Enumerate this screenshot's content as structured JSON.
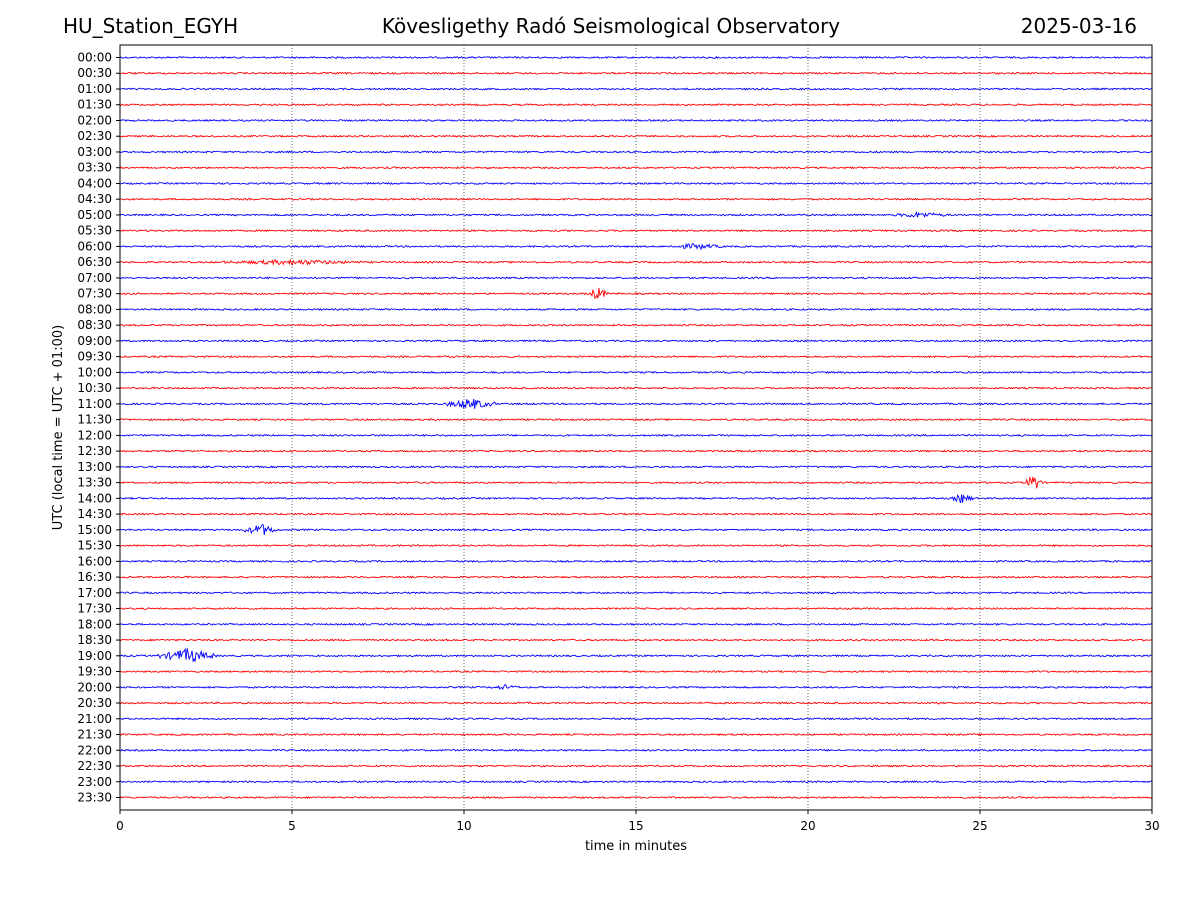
{
  "header": {
    "station": "HU_Station_EGYH",
    "observatory": "Kövesligethy Radó Seismological Observatory",
    "date": "2025-03-16"
  },
  "chart_data": {
    "type": "line",
    "title": "Kövesligethy Radó Seismological Observatory",
    "xlabel": "time in minutes",
    "ylabel": "UTC (local time = UTC + 01:00)",
    "xlim": [
      0,
      30
    ],
    "xticks": [
      0,
      5,
      10,
      15,
      20,
      25,
      30
    ],
    "vertical_grid": "dotted at 5-minute intervals",
    "trace_colors": [
      "#0000ff",
      "#ff0000"
    ],
    "rows": [
      "00:00",
      "00:30",
      "01:00",
      "01:30",
      "02:00",
      "02:30",
      "03:00",
      "03:30",
      "04:00",
      "04:30",
      "05:00",
      "05:30",
      "06:00",
      "06:30",
      "07:00",
      "07:30",
      "08:00",
      "08:30",
      "09:00",
      "09:30",
      "10:00",
      "10:30",
      "11:00",
      "11:30",
      "12:00",
      "12:30",
      "13:00",
      "13:30",
      "14:00",
      "14:30",
      "15:00",
      "15:30",
      "16:00",
      "16:30",
      "17:00",
      "17:30",
      "18:00",
      "18:30",
      "19:00",
      "19:30",
      "20:00",
      "20:30",
      "21:00",
      "21:30",
      "22:00",
      "22:30",
      "23:00",
      "23:30"
    ],
    "events": [
      {
        "row": "06:30",
        "start_min": 3.0,
        "end_min": 7.0,
        "strength": 0.5
      },
      {
        "row": "07:30",
        "start_min": 13.6,
        "end_min": 14.2,
        "strength": 1.5
      },
      {
        "row": "11:00",
        "start_min": 9.5,
        "end_min": 10.9,
        "strength": 1.3
      },
      {
        "row": "13:30",
        "start_min": 26.3,
        "end_min": 26.8,
        "strength": 2.2
      },
      {
        "row": "14:00",
        "start_min": 24.2,
        "end_min": 24.8,
        "strength": 1.2
      },
      {
        "row": "15:00",
        "start_min": 3.6,
        "end_min": 4.6,
        "strength": 1.4
      },
      {
        "row": "19:00",
        "start_min": 1.1,
        "end_min": 2.8,
        "strength": 1.7
      },
      {
        "row": "05:00",
        "start_min": 22.5,
        "end_min": 24.0,
        "strength": 0.6
      },
      {
        "row": "06:00",
        "start_min": 16.0,
        "end_min": 17.5,
        "strength": 0.6
      },
      {
        "row": "20:00",
        "start_min": 10.8,
        "end_min": 11.6,
        "strength": 0.5
      }
    ]
  }
}
